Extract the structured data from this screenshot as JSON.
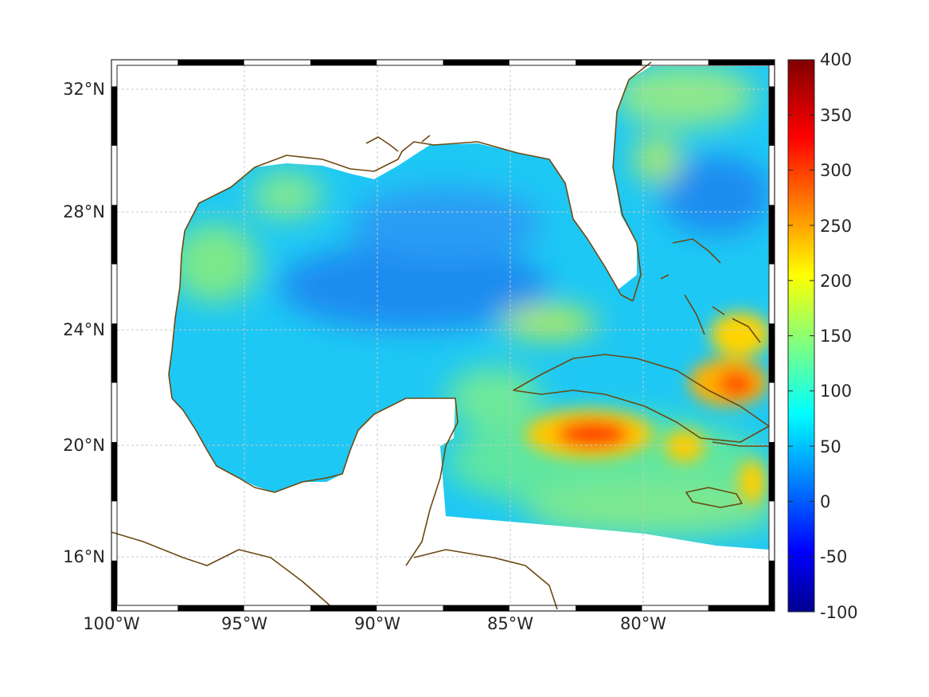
{
  "map": {
    "lon_labels": [
      "100°W",
      "95°W",
      "90°W",
      "85°W",
      "80°W"
    ],
    "lat_labels": [
      "16°N",
      "20°N",
      "24°N",
      "28°N",
      "32°N"
    ],
    "lon_values": [
      -100,
      -95,
      -90,
      -85,
      -80
    ],
    "lat_values": [
      16,
      20,
      24,
      28,
      32
    ],
    "lon_range": [
      -100,
      -75
    ],
    "lat_range": [
      14.3,
      32.9
    ],
    "grid": true,
    "colormap": "jet",
    "coast_color": "#6b4a12",
    "land_fill": "#ffffff"
  },
  "colorbar": {
    "range": [
      -100,
      400
    ],
    "ticks": [
      400,
      350,
      300,
      250,
      200,
      150,
      100,
      50,
      0,
      -50,
      -100
    ],
    "tick_labels": [
      "400",
      "350",
      "300",
      "250",
      "200",
      "150",
      "100",
      "50",
      "0",
      "-50",
      "-100"
    ]
  }
}
